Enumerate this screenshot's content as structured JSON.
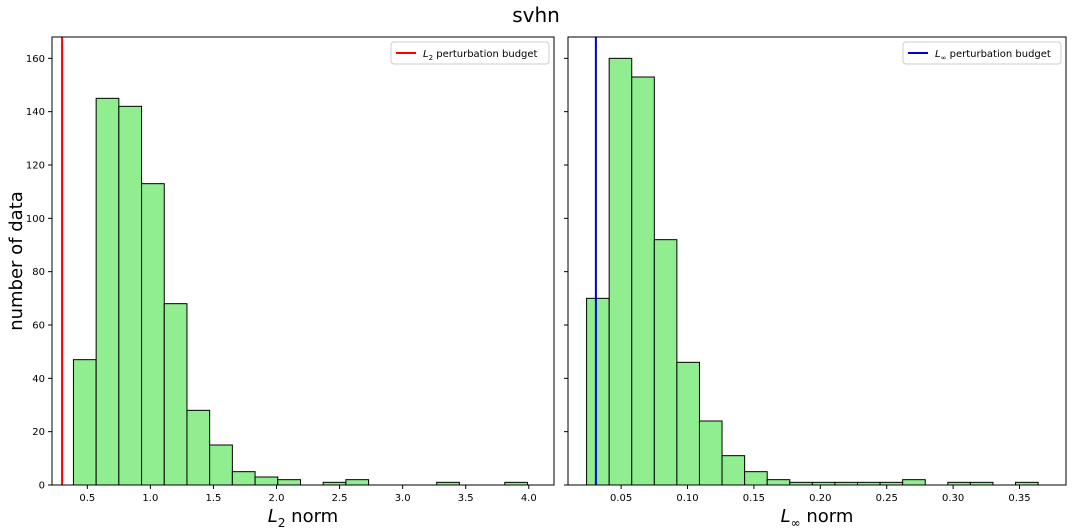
{
  "figure": {
    "title": "svhn"
  },
  "chart_data": [
    {
      "type": "bar",
      "subtype": "histogram",
      "ylabel": "number of data",
      "xlabel_main": "L",
      "xlabel_sub": "2",
      "xlabel_rest": " norm",
      "xlim": [
        0.22,
        4.2
      ],
      "ylim": [
        0,
        168
      ],
      "xticks": [
        0.5,
        1.0,
        1.5,
        2.0,
        2.5,
        3.0,
        3.5,
        4.0
      ],
      "xtick_labels": [
        "0.5",
        "1.0",
        "1.5",
        "2.0",
        "2.5",
        "3.0",
        "3.5",
        "4.0"
      ],
      "yticks": [
        0,
        20,
        40,
        60,
        80,
        100,
        120,
        140,
        160
      ],
      "ytick_labels": [
        "0",
        "20",
        "40",
        "60",
        "80",
        "100",
        "120",
        "140",
        "160"
      ],
      "bin_edges": [
        0.39,
        0.57,
        0.75,
        0.93,
        1.11,
        1.29,
        1.47,
        1.65,
        1.83,
        2.01,
        2.19,
        2.37,
        2.55,
        2.73,
        2.91,
        3.09,
        3.27,
        3.45,
        3.63,
        3.81,
        3.99
      ],
      "counts": [
        47,
        145,
        142,
        113,
        68,
        28,
        15,
        5,
        3,
        2,
        0,
        1,
        2,
        0,
        0,
        0,
        1,
        0,
        0,
        1
      ],
      "bar_color": "#90ee90",
      "edge_color": "#000000",
      "budget_line": {
        "x": 0.3,
        "color": "#ff0000"
      },
      "legend": {
        "main": "L",
        "sub": "2",
        "rest": " perturbation budget",
        "color": "#ff0000",
        "placement": "upper right"
      }
    },
    {
      "type": "bar",
      "subtype": "histogram",
      "xlabel_main": "L",
      "xlabel_sub": "∞",
      "xlabel_rest": " norm",
      "xlim": [
        0.01,
        0.385
      ],
      "ylim": [
        0,
        168
      ],
      "xticks": [
        0.05,
        0.1,
        0.15,
        0.2,
        0.25,
        0.3,
        0.35
      ],
      "xtick_labels": [
        "0.05",
        "0.10",
        "0.15",
        "0.20",
        "0.25",
        "0.30",
        "0.35"
      ],
      "yticks": [
        0,
        20,
        40,
        60,
        80,
        100,
        120,
        140,
        160
      ],
      "ytick_labels": [],
      "bin_edges": [
        0.024,
        0.041,
        0.058,
        0.075,
        0.092,
        0.109,
        0.126,
        0.143,
        0.16,
        0.177,
        0.194,
        0.211,
        0.228,
        0.245,
        0.262,
        0.279,
        0.296,
        0.313,
        0.33,
        0.347,
        0.364
      ],
      "counts": [
        70,
        160,
        153,
        92,
        46,
        24,
        11,
        5,
        2,
        1,
        1,
        1,
        1,
        1,
        2,
        0,
        1,
        1,
        0,
        1
      ],
      "bar_color": "#90ee90",
      "edge_color": "#000000",
      "budget_line": {
        "x": 0.031,
        "color": "#0000cd"
      },
      "legend": {
        "main": "L",
        "sub": "∞",
        "rest": " perturbation budget",
        "color": "#0000cd",
        "placement": "upper right"
      }
    }
  ]
}
